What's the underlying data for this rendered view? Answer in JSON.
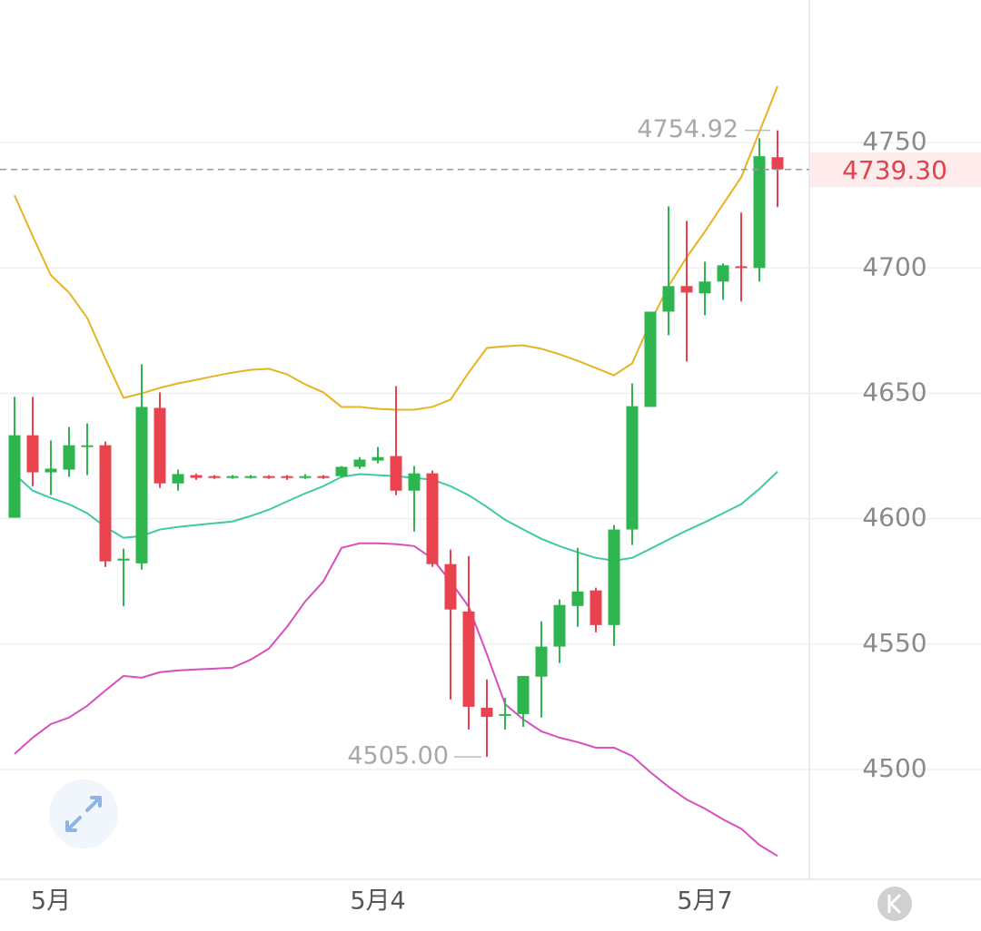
{
  "chart_data": {
    "type": "candlestick",
    "categories": [
      null,
      null,
      "5月",
      null,
      null,
      null,
      null,
      null,
      null,
      null,
      null,
      null,
      null,
      null,
      null,
      null,
      null,
      null,
      null,
      null,
      "5月4",
      null,
      null,
      null,
      null,
      null,
      null,
      null,
      null,
      null,
      null,
      null,
      null,
      null,
      null,
      null,
      null,
      null,
      "5月7",
      null,
      null,
      null,
      null
    ],
    "open": [
      4600.4,
      4633.3,
      4618.5,
      4619.6,
      4628.6,
      4629.3,
      4583.3,
      4582.2,
      4644.2,
      4614.1,
      4617.4,
      4617,
      4616.3,
      4616.3,
      4617,
      4617,
      4616.3,
      4617,
      4617,
      4620.7,
      4623.2,
      4625,
      4611.2,
      4618.1,
      4581.9,
      4563,
      4524.6,
      4521.4,
      4522.1,
      4537,
      4549,
      4565.2,
      4571.4,
      4557.6,
      4595.7,
      4644.6,
      4682.6,
      4692.8,
      4689.9,
      4694.6,
      4700.7,
      4700,
      4744.2
    ],
    "high": [
      4648.6,
      4648.6,
      4631.2,
      4636.6,
      4638,
      4630.8,
      4588,
      4661.6,
      4650.4,
      4619.6,
      4618,
      4617.4,
      4617.4,
      4617.4,
      4617.4,
      4617.4,
      4617.8,
      4617.4,
      4621,
      4624.6,
      4628.6,
      4652.9,
      4621,
      4619.2,
      4587.7,
      4585.1,
      4535.9,
      4528.6,
      4537.3,
      4559.1,
      4567.8,
      4588.4,
      4572.5,
      4597.5,
      4654,
      4682.6,
      4724.6,
      4718.8,
      4702.5,
      4701.8,
      4722.1,
      4751.8,
      4754.92
    ],
    "low": [
      4600.4,
      4613,
      4609.4,
      4616.7,
      4617.4,
      4580.8,
      4565.2,
      4579.7,
      4612.3,
      4611.2,
      4615.5,
      4615.9,
      4615.9,
      4616,
      4615.9,
      4615.5,
      4615.9,
      4615.9,
      4616.3,
      4619.9,
      4622.1,
      4609.4,
      4594.9,
      4580.8,
      4527.9,
      4515.9,
      4505,
      4515.9,
      4517,
      4520.7,
      4542.4,
      4556.9,
      4554.7,
      4549.3,
      4589.5,
      4644.6,
      4673.2,
      4662.7,
      4681.2,
      4687.3,
      4686.6,
      4694.6,
      4724.3
    ],
    "close": [
      4633.3,
      4618.5,
      4620,
      4629.3,
      4629.3,
      4583,
      4584.1,
      4644.6,
      4614.1,
      4617.8,
      4616.3,
      4616.3,
      4617,
      4617,
      4616.3,
      4616.3,
      4617,
      4616.3,
      4620.7,
      4623.6,
      4624.6,
      4611.2,
      4618.1,
      4581.9,
      4563.8,
      4525,
      4521,
      4522.1,
      4537.3,
      4549,
      4565.6,
      4571,
      4557.6,
      4595.7,
      4644.9,
      4682.6,
      4692.8,
      4690.2,
      4694.6,
      4701.1,
      4700,
      4744.6,
      4739.3
    ],
    "up_color": "#2eb54f",
    "down_color": "#e8434f",
    "overlays": [
      {
        "color": "#e6b422",
        "values": [
          4729,
          4712.7,
          4697.1,
          4690.2,
          4680.1,
          4663.8,
          4648.2,
          4650,
          4652.2,
          4654,
          4655.4,
          4656.9,
          4658.3,
          4659.4,
          4659.8,
          4657.6,
          4653.6,
          4650.4,
          4644.6,
          4644.6,
          4643.8,
          4643.5,
          4643.5,
          4644.6,
          4647.5,
          4658.3,
          4668.1,
          4668.8,
          4669.2,
          4667.8,
          4665.6,
          4663,
          4660.1,
          4657.2,
          4662,
          4678.3,
          4692.8,
          4704.3,
          4714.5,
          4725.4,
          4736.2,
          4754.3,
          4772.5
        ]
      },
      {
        "color": "#3ec9a7",
        "values": [
          4617.8,
          4611.2,
          4608.3,
          4605.8,
          4602.2,
          4596.7,
          4592.4,
          4593.1,
          4595.7,
          4596.7,
          4597.5,
          4598.2,
          4598.9,
          4601.1,
          4603.6,
          4606.9,
          4610.1,
          4613,
          4616.7,
          4617.8,
          4617.4,
          4617,
          4616.3,
          4615.6,
          4613,
          4609.4,
          4604.7,
          4599.6,
          4595.7,
          4592,
          4589.1,
          4586.6,
          4584.4,
          4583.3,
          4584.4,
          4588,
          4591.7,
          4595.3,
          4598.6,
          4602.2,
          4605.8,
          4611.9,
          4618.8
        ]
      },
      {
        "color": "#d84fbf",
        "values": [
          4506.2,
          4512.7,
          4518.1,
          4520.7,
          4525.4,
          4531.5,
          4537.3,
          4536.6,
          4538.8,
          4539.5,
          4539.9,
          4540.2,
          4540.6,
          4543.8,
          4548.2,
          4556.9,
          4567,
          4575,
          4588.4,
          4590.2,
          4590.2,
          4589.9,
          4589.1,
          4584.1,
          4575,
          4564.9,
          4546,
          4526.1,
          4520,
          4515.2,
          4512.7,
          4510.9,
          4508.7,
          4508.7,
          4505.4,
          4498.9,
          4493.1,
          4488,
          4484.4,
          4480.1,
          4476.4,
          4469.9,
          4465.5
        ]
      }
    ],
    "ylim": [
      4456.2,
      4806.9
    ],
    "yticks": [
      4500,
      4550,
      4600,
      4650,
      4700,
      4750
    ],
    "grid": true,
    "last_price": {
      "value": 4739.3,
      "label": "4739.30"
    },
    "max_label": 4754.92,
    "min_label": {
      "value": 4505,
      "label": "4505.00"
    }
  }
}
